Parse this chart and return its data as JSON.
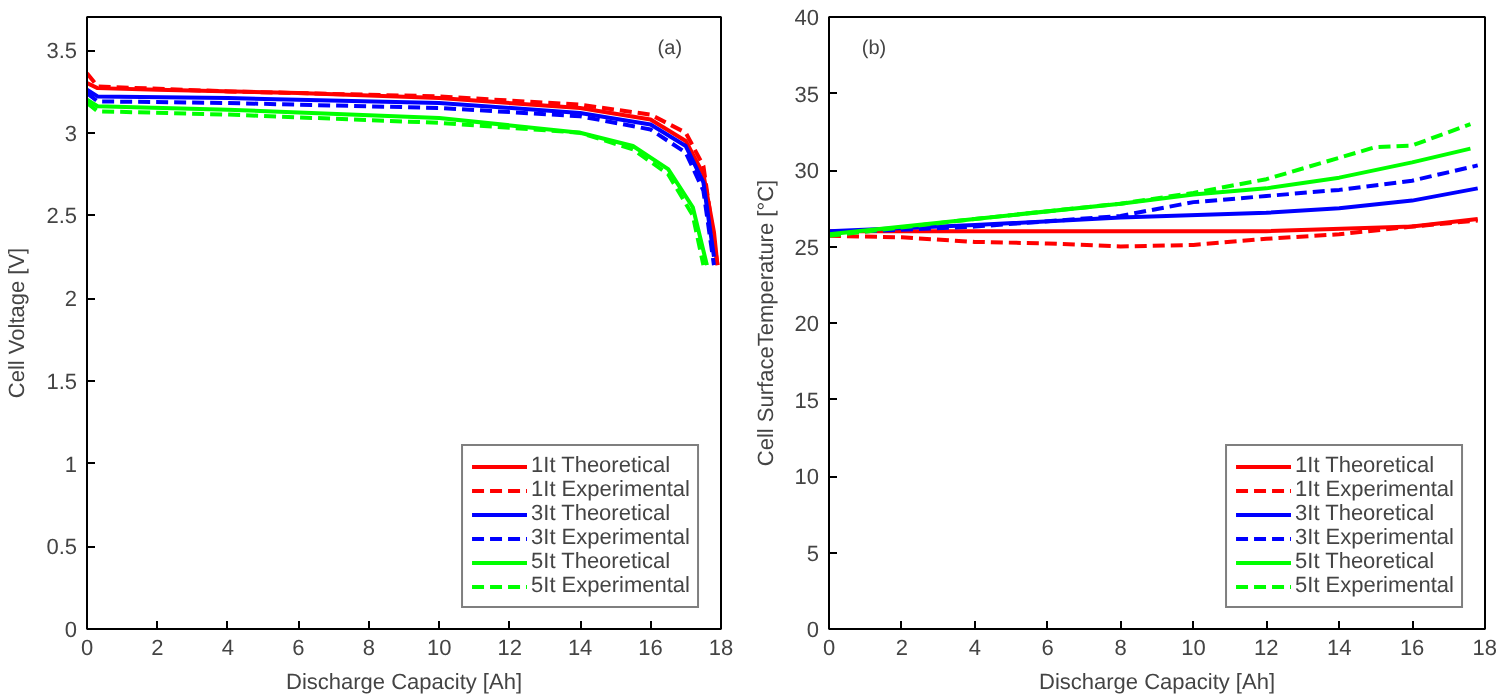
{
  "chart_data": [
    {
      "type": "line",
      "xlabel": "Discharge Capacity [Ah]",
      "ylabel": "Cell Voltage [V]",
      "annotations": [
        "(a)"
      ],
      "xlim": [
        0,
        18
      ],
      "ylim": [
        0,
        3.7
      ],
      "xticks": [
        0,
        2,
        4,
        6,
        8,
        10,
        12,
        14,
        16,
        18
      ],
      "yticks": [
        0,
        0.5,
        1,
        1.5,
        2,
        2.5,
        3,
        3.5
      ],
      "legend": "bottom right",
      "series": [
        {
          "name": "1It Theoretical",
          "color": "#ff0000",
          "line_style": "solid",
          "x": [
            0,
            0.3,
            2,
            6,
            10,
            14,
            16,
            17,
            17.5,
            17.8,
            17.9
          ],
          "values": [
            3.3,
            3.27,
            3.26,
            3.24,
            3.21,
            3.15,
            3.08,
            2.95,
            2.75,
            2.4,
            2.2
          ]
        },
        {
          "name": "1It Experimental",
          "color": "#ff0000",
          "line_style": "dashed",
          "x": [
            0,
            0.3,
            4,
            10,
            14,
            16,
            17,
            17.5,
            17.9
          ],
          "values": [
            3.36,
            3.28,
            3.25,
            3.22,
            3.17,
            3.11,
            3.0,
            2.8,
            2.2
          ]
        },
        {
          "name": "3It Theoretical",
          "color": "#0000ff",
          "line_style": "solid",
          "x": [
            0,
            0.3,
            4,
            10,
            14,
            16,
            17,
            17.5,
            17.8
          ],
          "values": [
            3.26,
            3.22,
            3.21,
            3.18,
            3.12,
            3.05,
            2.92,
            2.7,
            2.25
          ]
        },
        {
          "name": "3It Experimental",
          "color": "#0000ff",
          "line_style": "dashed",
          "x": [
            0,
            0.3,
            4,
            10,
            14,
            16,
            17,
            17.5,
            17.8
          ],
          "values": [
            3.24,
            3.19,
            3.18,
            3.15,
            3.1,
            3.02,
            2.88,
            2.65,
            2.2
          ]
        },
        {
          "name": "5It Theoretical",
          "color": "#00ff00",
          "line_style": "solid",
          "x": [
            0,
            0.3,
            4,
            10,
            14,
            15.5,
            16.5,
            17.2,
            17.6
          ],
          "values": [
            3.2,
            3.16,
            3.14,
            3.09,
            3.0,
            2.92,
            2.78,
            2.55,
            2.2
          ]
        },
        {
          "name": "5It Experimental",
          "color": "#00ff00",
          "line_style": "dashed",
          "x": [
            0,
            0.3,
            4,
            10,
            14,
            15.5,
            16.5,
            17.2,
            17.5
          ],
          "values": [
            3.18,
            3.13,
            3.11,
            3.06,
            3.0,
            2.9,
            2.75,
            2.5,
            2.2
          ]
        }
      ]
    },
    {
      "type": "line",
      "xlabel": "Discharge Capacity [Ah]",
      "ylabel": "Cell SurfaceTemperature [°C]",
      "annotations": [
        "(b)"
      ],
      "xlim": [
        0,
        18
      ],
      "ylim": [
        0,
        40
      ],
      "xticks": [
        0,
        2,
        4,
        6,
        8,
        10,
        12,
        14,
        16,
        18
      ],
      "yticks": [
        0,
        5,
        10,
        15,
        20,
        25,
        30,
        35,
        40
      ],
      "legend": "bottom right",
      "series": [
        {
          "name": "1It Theoretical",
          "color": "#ff0000",
          "line_style": "solid",
          "x": [
            0,
            4,
            8,
            12,
            16,
            17.8
          ],
          "values": [
            26,
            26,
            26,
            26,
            26.3,
            26.8
          ]
        },
        {
          "name": "1It Experimental",
          "color": "#ff0000",
          "line_style": "dashed",
          "x": [
            0,
            2,
            4,
            6,
            8,
            10,
            12,
            14,
            16,
            17.8
          ],
          "values": [
            25.7,
            25.6,
            25.3,
            25.2,
            25.0,
            25.1,
            25.5,
            25.8,
            26.3,
            26.7
          ]
        },
        {
          "name": "3It Theoretical",
          "color": "#0000ff",
          "line_style": "solid",
          "x": [
            0,
            4,
            8,
            12,
            14,
            16,
            17.8
          ],
          "values": [
            26,
            26.4,
            26.9,
            27.2,
            27.5,
            28.0,
            28.8
          ]
        },
        {
          "name": "3It Experimental",
          "color": "#0000ff",
          "line_style": "dashed",
          "x": [
            0,
            4,
            8,
            10,
            12,
            14,
            16,
            17.8
          ],
          "values": [
            25.9,
            26.3,
            27.0,
            27.9,
            28.3,
            28.7,
            29.3,
            30.3
          ]
        },
        {
          "name": "5It Theoretical",
          "color": "#00ff00",
          "line_style": "solid",
          "x": [
            0,
            4,
            8,
            10,
            12,
            14,
            16,
            17.6
          ],
          "values": [
            25.8,
            26.8,
            27.8,
            28.4,
            28.8,
            29.5,
            30.5,
            31.4
          ]
        },
        {
          "name": "5It Experimental",
          "color": "#00ff00",
          "line_style": "dashed",
          "x": [
            0,
            4,
            8,
            10,
            12,
            14,
            15,
            16,
            17.6
          ],
          "values": [
            25.7,
            26.8,
            27.8,
            28.5,
            29.4,
            30.8,
            31.5,
            31.6,
            33.0
          ]
        }
      ]
    }
  ]
}
